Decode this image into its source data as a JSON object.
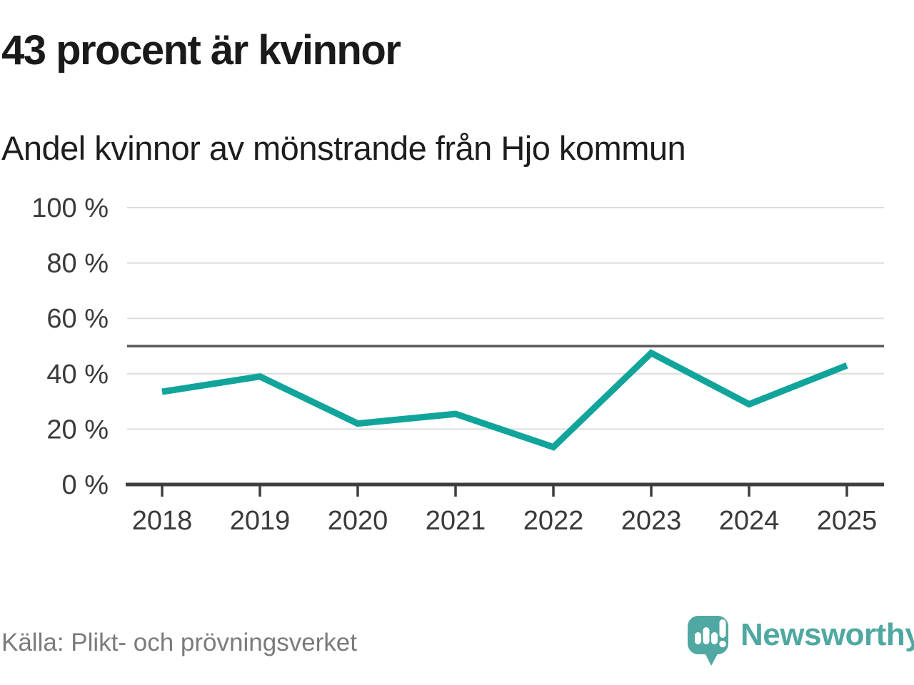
{
  "header": {
    "title": "43 procent är kvinnor",
    "subtitle": "Andel kvinnor av mönstrande från Hjo kommun"
  },
  "footer": {
    "source": "Källa: Plikt- och prövningsverket",
    "brand_name": "Newsworthy"
  },
  "colors": {
    "line": "#10a49b",
    "grid": "#dcdcdc",
    "axis": "#3e3e3e",
    "reference": "#58595b",
    "tick_text": "#3a3a3a",
    "title_text": "#1a1a1a",
    "source_text": "#7b7b7b",
    "brand_teal": "#4fa8a1"
  },
  "chart_data": {
    "type": "line",
    "title": "43 procent är kvinnor",
    "subtitle": "Andel kvinnor av mönstrande från Hjo kommun",
    "categories": [
      "2018",
      "2019",
      "2020",
      "2021",
      "2022",
      "2023",
      "2024",
      "2025"
    ],
    "series": [
      {
        "name": "Andel kvinnor av mönstrande från Hjo kommun",
        "values": [
          33.5,
          39,
          22,
          25.5,
          13.5,
          47.5,
          29,
          43
        ]
      }
    ],
    "unit": "%",
    "xlabel": "",
    "ylabel": "",
    "ylim": [
      0,
      100
    ],
    "yticks": [
      0,
      20,
      40,
      60,
      80,
      100
    ],
    "ytick_labels": [
      "0 %",
      "20 %",
      "40 %",
      "60 %",
      "80 %",
      "100 %"
    ],
    "reference_line": 50,
    "grid": true,
    "legend": false,
    "source": "Källa: Plikt- och prövningsverket"
  }
}
